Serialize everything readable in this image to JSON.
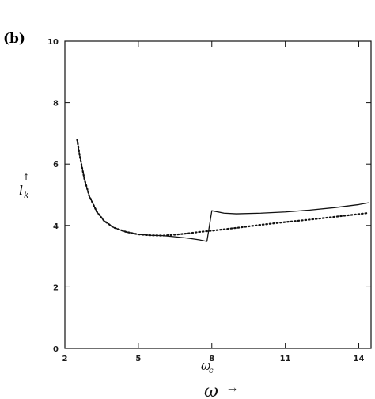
{
  "panel_label": "(b)",
  "ylabel_arrow": "↑",
  "xlabel_secondary_arrow": "→",
  "chart_data": {
    "type": "line",
    "xlabel": "ω_c",
    "xlabel_main": "ω",
    "xlabel_sub": "c",
    "ylabel": "l_k",
    "ylabel_main": "l",
    "ylabel_sub": "k",
    "secondary_xlabel": "ω",
    "xlim": [
      2,
      14.5
    ],
    "ylim": [
      0,
      10
    ],
    "xticks": [
      2,
      5,
      8,
      11,
      14
    ],
    "yticks": [
      0,
      2,
      4,
      6,
      8,
      10
    ],
    "grid": false,
    "series": [
      {
        "style": "solid",
        "x": [
          2.5,
          2.6,
          2.8,
          3.0,
          3.3,
          3.6,
          4.0,
          4.5,
          5.0,
          5.5,
          6.0,
          6.5,
          7.0,
          7.5,
          7.8,
          8.0,
          8.5,
          9.0,
          10.0,
          11.0,
          12.0,
          13.0,
          14.0,
          14.4
        ],
        "y": [
          6.8,
          6.3,
          5.5,
          4.95,
          4.45,
          4.15,
          3.93,
          3.79,
          3.71,
          3.68,
          3.67,
          3.63,
          3.59,
          3.53,
          3.48,
          4.48,
          4.4,
          4.38,
          4.4,
          4.44,
          4.5,
          4.58,
          4.68,
          4.74
        ]
      },
      {
        "style": "dotted",
        "x": [
          2.5,
          2.6,
          2.8,
          3.0,
          3.3,
          3.6,
          4.0,
          4.5,
          5.0,
          5.5,
          6.0,
          6.5,
          7.0,
          7.5,
          8.0,
          9.0,
          10.0,
          11.0,
          12.0,
          13.0,
          14.0,
          14.4
        ],
        "y": [
          6.8,
          6.3,
          5.5,
          4.95,
          4.45,
          4.15,
          3.93,
          3.79,
          3.71,
          3.68,
          3.67,
          3.7,
          3.74,
          3.79,
          3.83,
          3.92,
          4.02,
          4.11,
          4.19,
          4.28,
          4.37,
          4.41
        ]
      }
    ]
  }
}
